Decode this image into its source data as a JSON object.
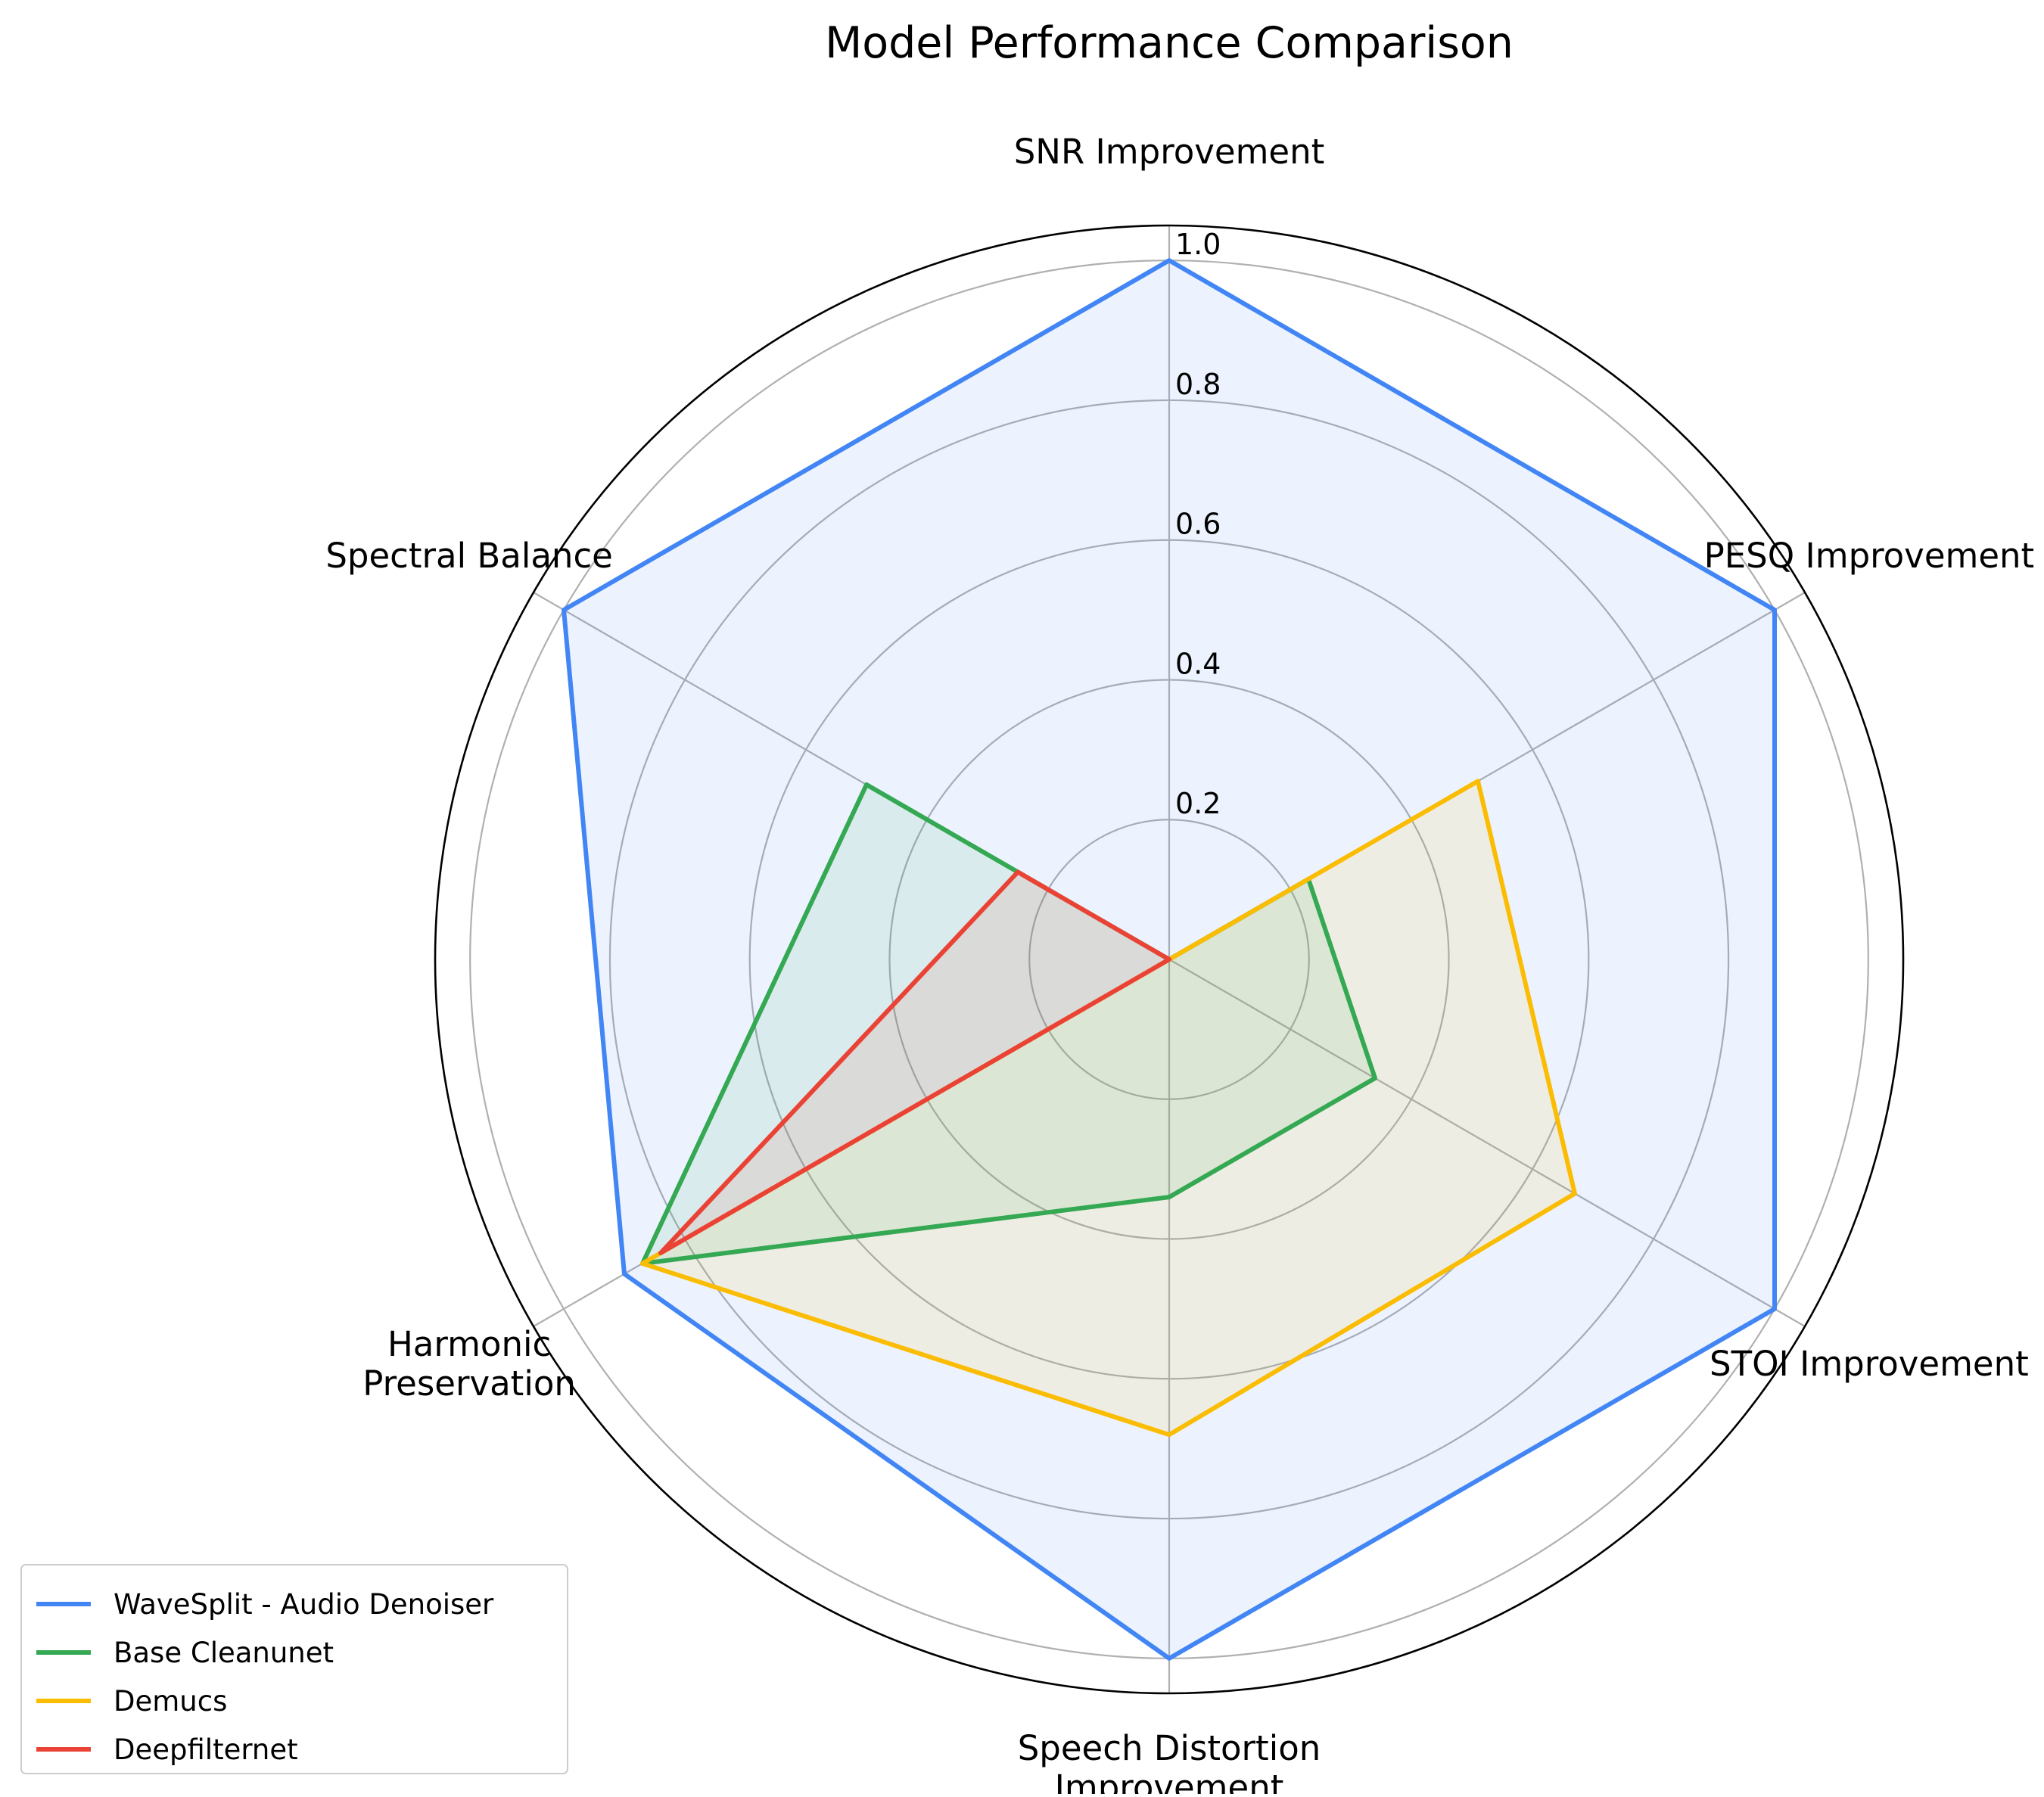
{
  "chart_data": {
    "type": "radar",
    "title": "Model Performance Comparison",
    "axes": [
      [
        "SNR Improvement"
      ],
      [
        "PESQ Improvement"
      ],
      [
        "STOI Improvement"
      ],
      [
        "Speech Distortion",
        "Improvement"
      ],
      [
        "Harmonic",
        "Preservation"
      ],
      [
        "Spectral Balance"
      ]
    ],
    "radial_ticks": [
      "0.2",
      "0.4",
      "0.6",
      "0.8",
      "1.0"
    ],
    "radial_tick_values": [
      0.2,
      0.4,
      0.6,
      0.8,
      1.0
    ],
    "rlim": [
      0,
      1.05
    ],
    "grid": true,
    "legend_position": "lower-left",
    "series": [
      {
        "name": "WaveSplit - Audio Denoiser",
        "color": "#4285f4",
        "values": [
          1.0,
          1.0,
          1.0,
          1.0,
          0.9,
          1.0
        ]
      },
      {
        "name": "Base Cleanunet",
        "color": "#34a853",
        "values": [
          0.0,
          0.23,
          0.34,
          0.34,
          0.87,
          0.5
        ]
      },
      {
        "name": "Demucs",
        "color": "#fbbc04",
        "values": [
          0.0,
          0.51,
          0.67,
          0.68,
          0.87,
          0.0
        ]
      },
      {
        "name": "Deepfilternet",
        "color": "#ea4335",
        "values": [
          0.0,
          0.0,
          0.0,
          0.0,
          0.84,
          0.25
        ]
      }
    ]
  }
}
